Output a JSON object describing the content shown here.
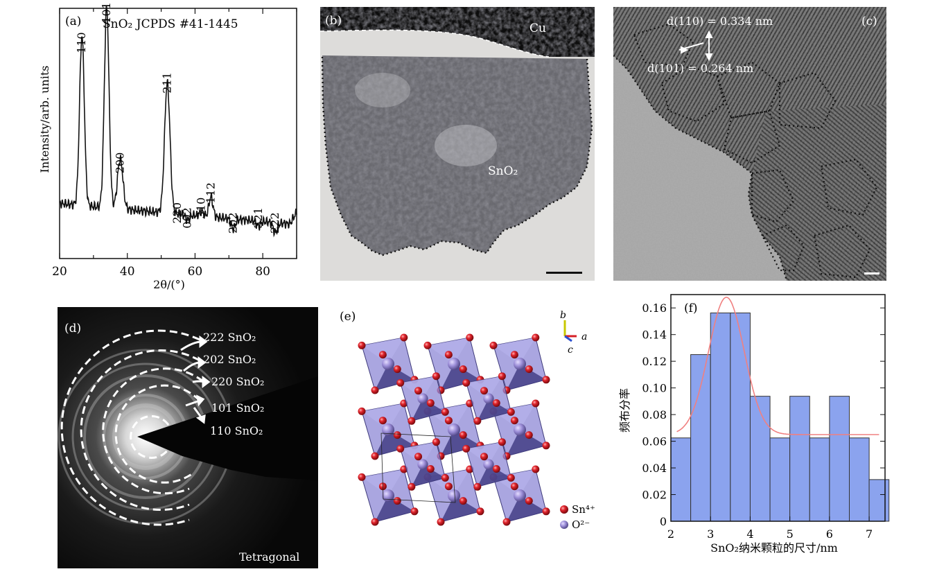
{
  "panel_a": {
    "label": "(a)",
    "title": "SnO₂ JCPDS #41-1445",
    "ylabel": "Intensity/arb. units",
    "xlabel": "2θ/(°)"
  },
  "panel_b": {
    "label": "(b)",
    "cu_label": "Cu",
    "sno2_label": "SnO₂"
  },
  "panel_c": {
    "label": "(c)",
    "d110": "d(110) = 0.334 nm",
    "d101": "d(101) = 0.264 nm"
  },
  "panel_d": {
    "label": "(d)",
    "rings": [
      "222 SnO₂",
      "202 SnO₂",
      "220 SnO₂",
      "101 SnO₂",
      "110 SnO₂"
    ],
    "footer": "Tetragonal"
  },
  "panel_e": {
    "label": "(e)",
    "axes": {
      "b": "b",
      "a": "a",
      "c": "c"
    },
    "legend": [
      {
        "label": "Sn⁴⁺",
        "color": "#d61f26"
      },
      {
        "label": "O²⁻",
        "color": "#8f7fd0"
      }
    ]
  },
  "panel_f": {
    "label": "(f)"
  },
  "chart_data": [
    {
      "type": "line",
      "panel": "a",
      "xlim": [
        20,
        90
      ],
      "xticks": [
        20,
        40,
        60,
        80
      ],
      "peaks": [
        {
          "label": "110",
          "x": 26.6,
          "y": 0.78
        },
        {
          "label": "101",
          "x": 33.9,
          "y": 0.9
        },
        {
          "label": "200",
          "x": 37.9,
          "y": 0.3
        },
        {
          "label": "211",
          "x": 51.8,
          "y": 0.62
        },
        {
          "label": "220",
          "x": 54.8,
          "y": 0.1
        },
        {
          "label": "002",
          "x": 57.8,
          "y": 0.08
        },
        {
          "label": "310",
          "x": 61.9,
          "y": 0.12
        },
        {
          "label": "112",
          "x": 64.7,
          "y": 0.18
        },
        {
          "label": "202",
          "x": 71.3,
          "y": 0.06
        },
        {
          "label": "321",
          "x": 78.7,
          "y": 0.08
        },
        {
          "label": "222",
          "x": 83.7,
          "y": 0.06
        }
      ]
    },
    {
      "type": "bar",
      "panel": "f",
      "xlabel": "SnO₂纳米颗粒的尺寸/nm",
      "ylabel": "频布分率",
      "xlim": [
        2,
        7.4
      ],
      "ylim": [
        0,
        0.17
      ],
      "xticks": [
        2,
        3,
        4,
        5,
        6,
        7
      ],
      "yticks": [
        0,
        0.02,
        0.04,
        0.06,
        0.08,
        0.1,
        0.12,
        0.14,
        0.16
      ],
      "bin_width": 0.5,
      "bars": [
        {
          "x": 2.25,
          "value": 0.0625
        },
        {
          "x": 2.75,
          "value": 0.125
        },
        {
          "x": 3.25,
          "value": 0.15625
        },
        {
          "x": 3.75,
          "value": 0.15625
        },
        {
          "x": 4.25,
          "value": 0.09375
        },
        {
          "x": 4.75,
          "value": 0.0625
        },
        {
          "x": 5.25,
          "value": 0.09375
        },
        {
          "x": 5.75,
          "value": 0.0625
        },
        {
          "x": 6.25,
          "value": 0.09375
        },
        {
          "x": 6.75,
          "value": 0.0625
        },
        {
          "x": 7.25,
          "value": 0.03125
        }
      ],
      "fit": {
        "type": "gaussian",
        "center": 3.4,
        "peak": 0.168,
        "baseline": 0.065,
        "sigma": 0.45,
        "x_range": [
          2.15,
          7.25
        ]
      },
      "bar_color": "#8ba3ee",
      "fit_color": "#f08080"
    }
  ]
}
